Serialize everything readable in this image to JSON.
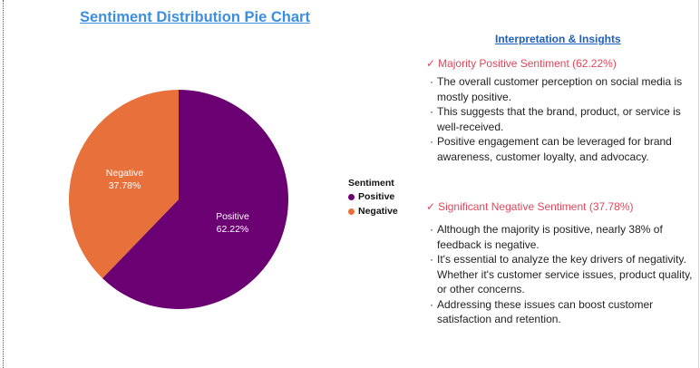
{
  "chart_data": {
    "type": "pie",
    "title": "Sentiment Distribution Pie Chart",
    "legend_title": "Sentiment",
    "legend_position": "right",
    "slices": [
      {
        "name": "Positive",
        "value": 62.22,
        "label": "62.22%",
        "color": "#6b0073"
      },
      {
        "name": "Negative",
        "value": 37.78,
        "label": "37.78%",
        "color": "#e8703a"
      }
    ]
  },
  "insights": {
    "title": "Interpretation & Insights",
    "sections": [
      {
        "check": "✓",
        "heading": "Majority Positive Sentiment (62.22%)",
        "points": [
          "The overall customer perception on social media is mostly positive.",
          "This suggests that the brand, product, or service is well-received.",
          "Positive engagement can be leveraged for brand awareness, customer loyalty, and advocacy."
        ]
      },
      {
        "check": "✓",
        "heading": "Significant Negative Sentiment (37.78%)",
        "points": [
          "Although the majority is positive, nearly 38% of feedback is negative.",
          "It's essential to analyze the key drivers of negativity. Whether it's customer service issues, product quality, or other concerns.",
          "Addressing these issues can boost customer satisfaction and retention."
        ]
      }
    ]
  }
}
